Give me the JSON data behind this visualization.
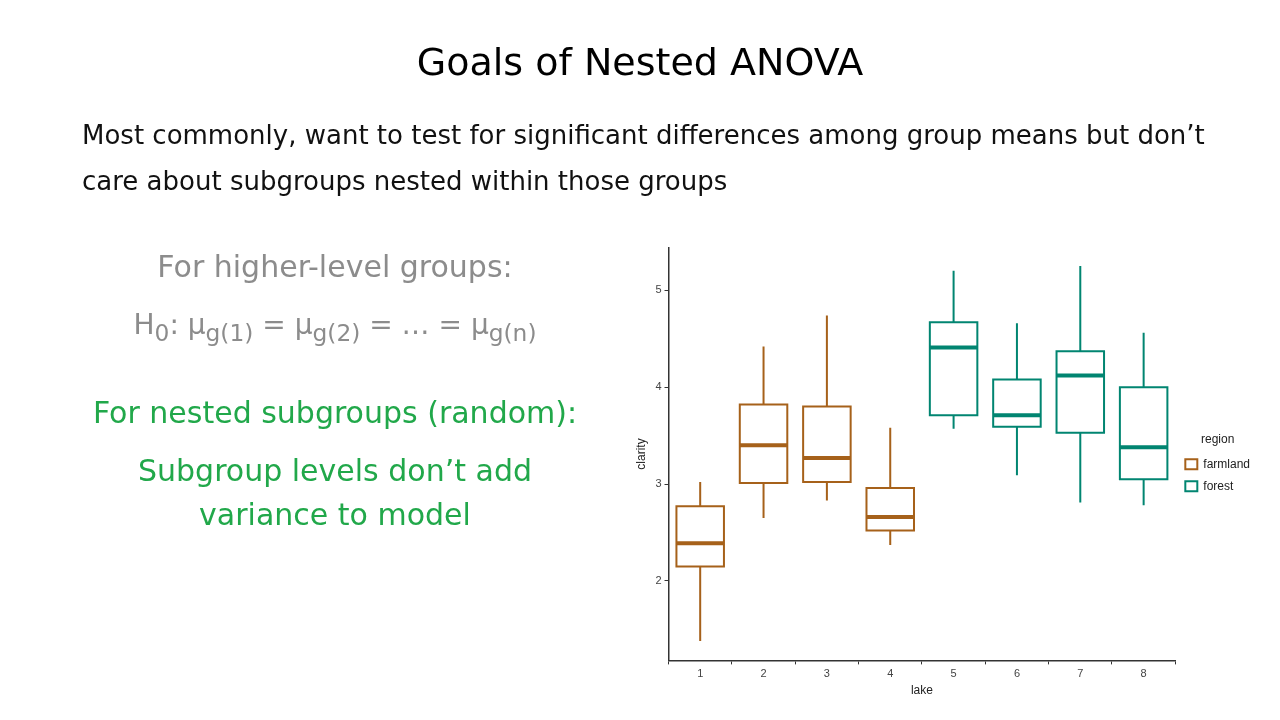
{
  "chart_data": {
    "type": "box",
    "title": "Goals of Nested ANOVA",
    "subtitle": "Most commonly, want to test for significant differences among group means but don’t care about subgroups nested within those groups",
    "annotations": [
      "For higher-level groups:",
      "H$_{0}$: μ$_{g(1)}$ = μ$_{g(2)}$ = … = μ$_{g(n)}$",
      "For nested subgroups (random):",
      "Subgroup levels don’t add variance to model"
    ],
    "xlabel": "lake",
    "ylabel": "clarity",
    "legend_title": "region",
    "legend": "right",
    "grid": false,
    "categories": [
      "1",
      "2",
      "3",
      "4",
      "5",
      "6",
      "7",
      "8"
    ],
    "ylim": [
      1.18,
      5.44
    ],
    "yticks": [
      2,
      3,
      4,
      5
    ],
    "series": [
      {
        "name": "farmland",
        "color": "#a6611a",
        "boxes": [
          {
            "low": 1.38,
            "q1": 2.15,
            "median": 2.39,
            "q3": 2.77,
            "high": 3.02
          },
          {
            "low": 2.65,
            "q1": 3.01,
            "median": 3.4,
            "q3": 3.82,
            "high": 4.42
          },
          {
            "low": 2.83,
            "q1": 3.02,
            "median": 3.27,
            "q3": 3.8,
            "high": 4.74
          },
          {
            "low": 2.37,
            "q1": 2.52,
            "median": 2.66,
            "q3": 2.96,
            "high": 3.58
          },
          null,
          null,
          null,
          null
        ]
      },
      {
        "name": "forest",
        "color": "#018571",
        "boxes": [
          null,
          null,
          null,
          null,
          {
            "low": 3.57,
            "q1": 3.71,
            "median": 4.41,
            "q3": 4.67,
            "high": 5.2
          },
          {
            "low": 3.09,
            "q1": 3.59,
            "median": 3.71,
            "q3": 4.08,
            "high": 4.66
          },
          {
            "low": 2.81,
            "q1": 3.53,
            "median": 4.12,
            "q3": 4.37,
            "high": 5.25
          },
          {
            "low": 2.78,
            "q1": 3.05,
            "median": 3.38,
            "q3": 4.0,
            "high": 4.56
          }
        ]
      }
    ]
  }
}
